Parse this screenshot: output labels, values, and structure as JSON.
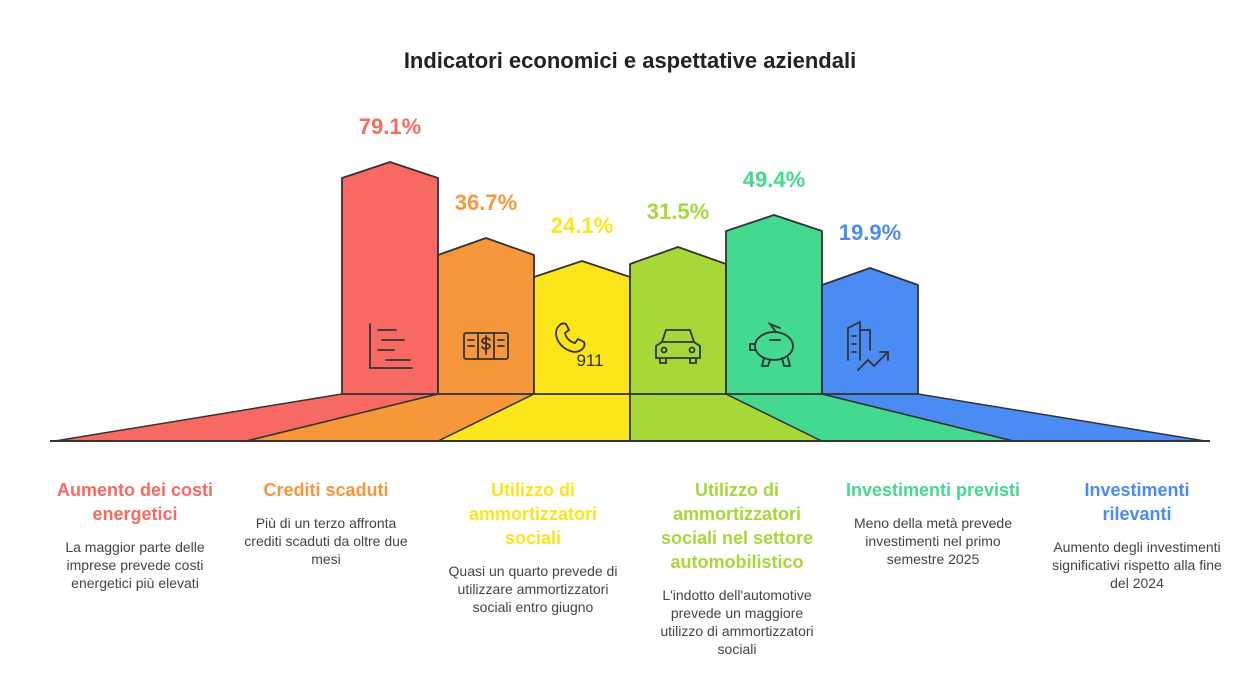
{
  "title": "Indicatori economici e aspettative aziendali",
  "items": [
    {
      "value": "79.1%",
      "title": "Aumento dei costi energetici",
      "description": "La maggior parte delle imprese prevede costi energetici più elevati",
      "color": "#f76a63"
    },
    {
      "value": "36.7%",
      "title": "Crediti scaduti",
      "description": "Più di un terzo affronta crediti scaduti da oltre due mesi",
      "color": "#f5973a"
    },
    {
      "value": "24.1%",
      "title": "Utilizzo di ammortizzatori sociali",
      "description": "Quasi un quarto prevede di utilizzare ammortizzatori sociali entro giugno",
      "color": "#fce51b",
      "icon_text": "911"
    },
    {
      "value": "31.5%",
      "title": "Utilizzo di ammortizzatori sociali nel settore automobilistico",
      "description": "L'indotto dell'automotive prevede un maggiore utilizzo di ammortizzatori sociali",
      "color": "#a6d83a"
    },
    {
      "value": "49.4%",
      "title": "Investimenti previsti",
      "description": "Meno della metà prevede investimenti nel primo semestre 2025",
      "color": "#43d98e"
    },
    {
      "value": "19.9%",
      "title": "Investimenti rilevanti",
      "description": "Aumento degli investimenti significativi rispetto alla fine del 2024",
      "color": "#4a8bf4"
    }
  ]
}
